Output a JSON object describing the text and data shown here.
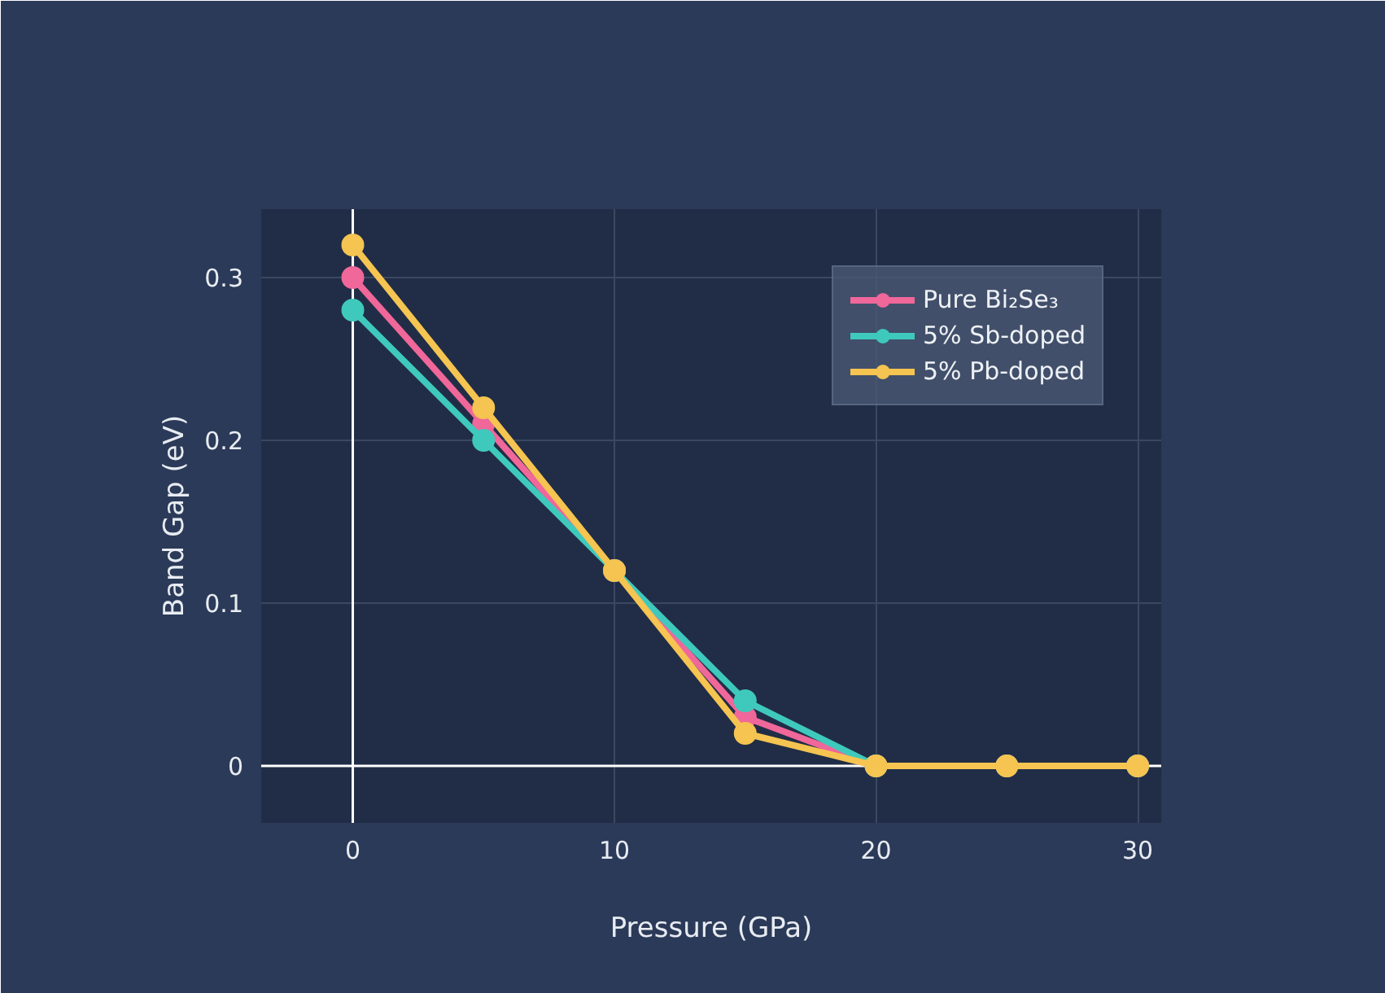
{
  "chart_data": {
    "type": "line",
    "xlabel": "Pressure (GPa)",
    "ylabel": "Band Gap (eV)",
    "x": [
      0,
      5,
      10,
      15,
      20,
      25,
      30
    ],
    "series": [
      {
        "name": "Pure Bi₂Se₃",
        "color": "#f0679a",
        "values": [
          0.3,
          0.21,
          0.12,
          0.03,
          0,
          0,
          0
        ]
      },
      {
        "name": "5% Sb-doped",
        "color": "#3fc9bd",
        "values": [
          0.28,
          0.2,
          0.12,
          0.04,
          0,
          0,
          0
        ]
      },
      {
        "name": "5% Pb-doped",
        "color": "#f5c451",
        "values": [
          0.32,
          0.22,
          0.12,
          0.02,
          0,
          0,
          0
        ]
      }
    ],
    "xlim": [
      -3.5,
      30.9
    ],
    "ylim": [
      -0.035,
      0.342
    ],
    "xticks": [
      0,
      10,
      20,
      30
    ],
    "yticks": [
      0,
      0.1,
      0.2,
      0.3
    ],
    "grid": true,
    "legend": "top right",
    "marker": "circle",
    "line_style": "solid"
  }
}
